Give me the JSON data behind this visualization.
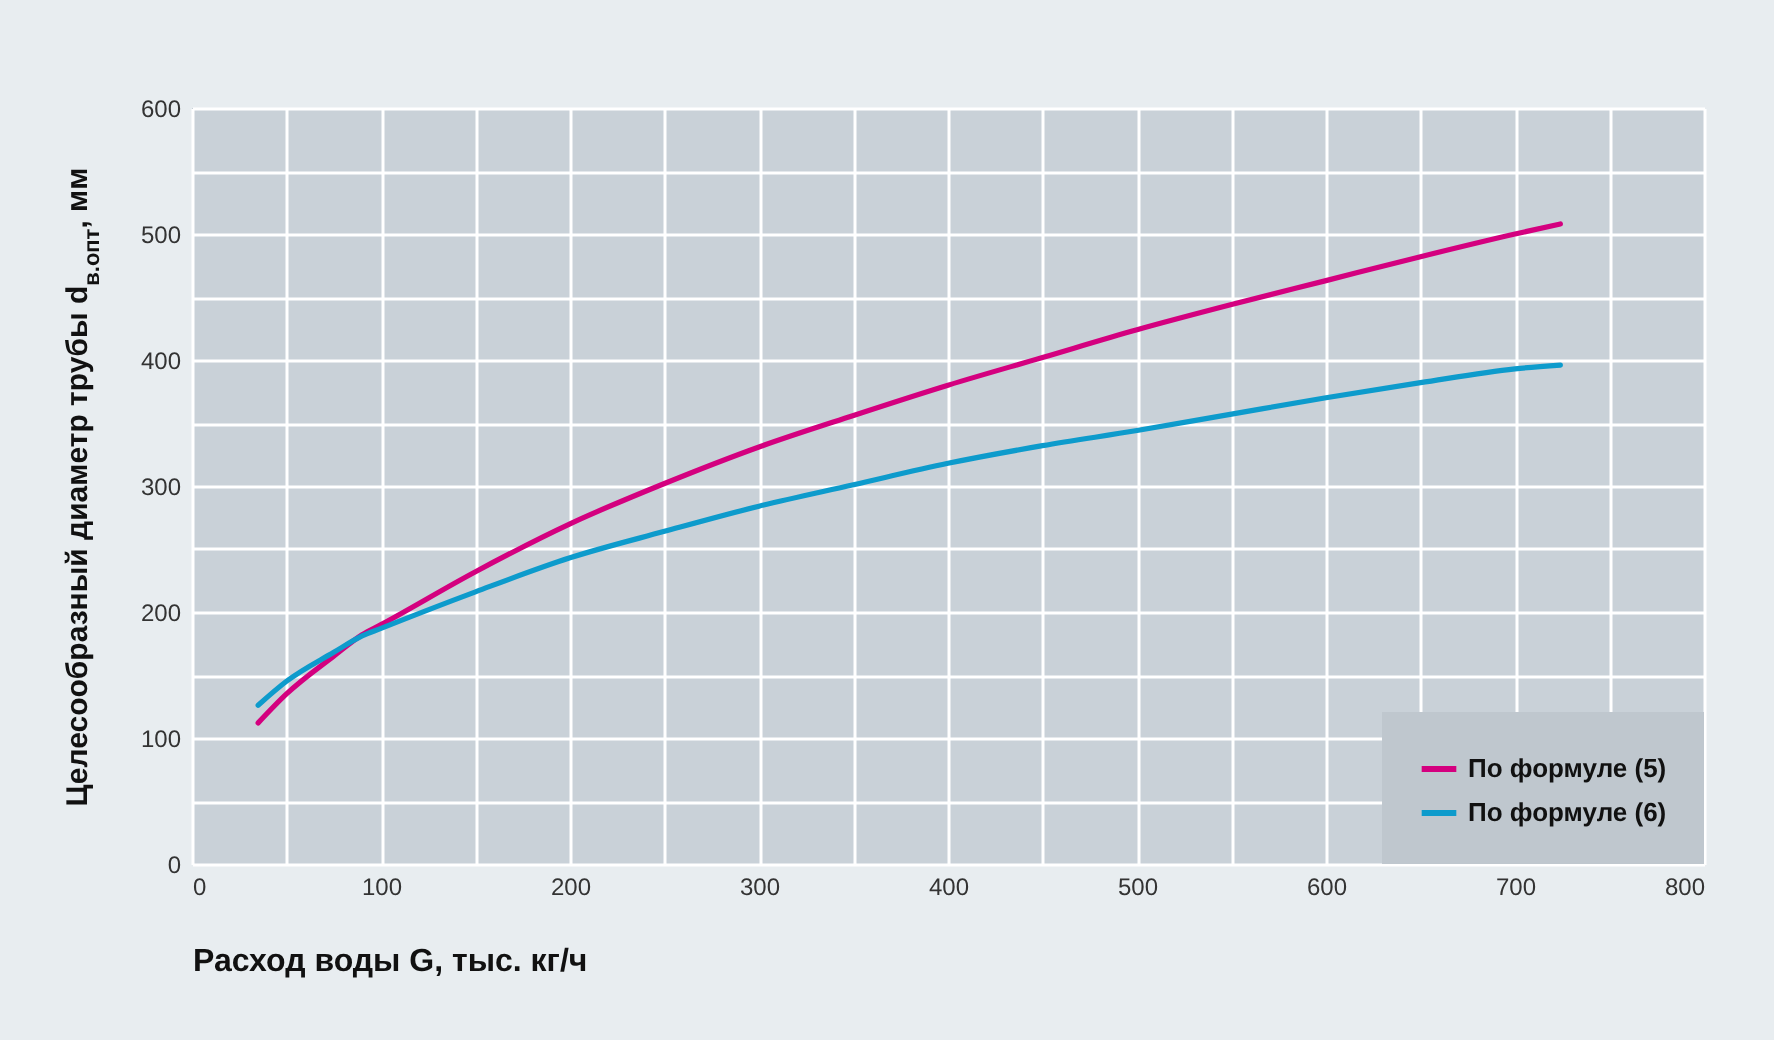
{
  "chart_data": {
    "type": "line",
    "xlabel": "Расход воды G, тыс. кг/ч",
    "ylabel": "Целесообразный диаметр трубы d$_{в.опт}$, мм",
    "x": [
      35,
      50,
      75,
      90,
      100,
      150,
      200,
      250,
      300,
      350,
      400,
      450,
      500,
      550,
      600,
      650,
      700,
      724
    ],
    "series": [
      {
        "name": "По формуле (5)",
        "color": "#d4007f",
        "values": [
          112,
          135,
          165,
          182,
          190,
          232,
          270,
          302,
          331,
          356,
          380,
          402,
          424,
          444,
          463,
          482,
          500,
          508
        ]
      },
      {
        "name": "По формуле (6)",
        "color": "#0d9bcc",
        "values": [
          126,
          145,
          168,
          181,
          187,
          216,
          243,
          264,
          284,
          301,
          318,
          332,
          344,
          357,
          370,
          382,
          393,
          396
        ]
      }
    ],
    "xlim": [
      0,
      800
    ],
    "xticks": [
      0,
      {
        "value": 50,
        "label": null
      },
      100,
      {
        "value": 150,
        "label": null
      },
      200,
      {
        "value": 250,
        "label": null
      },
      300,
      {
        "value": 350,
        "label": null
      },
      400,
      {
        "value": 450,
        "label": null
      },
      500,
      {
        "value": 550,
        "label": null
      },
      600,
      {
        "value": 650,
        "label": null
      },
      700,
      {
        "value": 750,
        "label": null
      },
      800
    ],
    "ylim": [
      0,
      600
    ],
    "yticks": [
      0,
      {
        "value": 50,
        "label": null
      },
      100,
      {
        "value": 150,
        "label": null
      },
      200,
      {
        "value": 250,
        "label": null
      },
      300,
      {
        "value": 350,
        "label": null
      },
      400,
      {
        "value": 450,
        "label": null
      },
      500,
      {
        "value": 550,
        "label": null
      },
      600
    ],
    "grid": true,
    "legend": "bottom right",
    "line_style": "solid",
    "marker": "none"
  }
}
